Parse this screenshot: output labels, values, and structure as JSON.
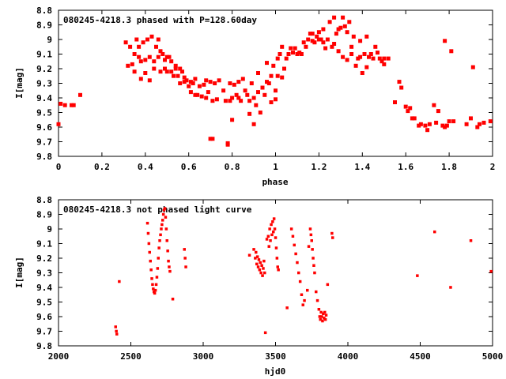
{
  "chart_data": [
    {
      "type": "scatter",
      "title": "080245-4218.3 phased with P=128.60day",
      "xlabel": "phase",
      "ylabel": "I[mag]",
      "xlim": [
        0,
        2
      ],
      "ylim": [
        9.8,
        8.8
      ],
      "y_inverted": true,
      "grid": false,
      "xticks": [
        "0",
        "0.2",
        "0.4",
        "0.6",
        "0.8",
        "1",
        "1.2",
        "1.4",
        "1.6",
        "1.8",
        "2"
      ],
      "yticks": [
        "8.8",
        "8.9",
        "9",
        "9.1",
        "9.2",
        "9.3",
        "9.4",
        "9.5",
        "9.6",
        "9.7",
        "9.8"
      ],
      "marker_color": "#ff0000",
      "points": [
        [
          0.0,
          9.58
        ],
        [
          0.01,
          9.44
        ],
        [
          0.03,
          9.45
        ],
        [
          0.06,
          9.45
        ],
        [
          0.07,
          9.45
        ],
        [
          0.1,
          9.38
        ],
        [
          0.31,
          9.02
        ],
        [
          0.32,
          9.18
        ],
        [
          0.33,
          9.05
        ],
        [
          0.34,
          9.17
        ],
        [
          0.35,
          9.1
        ],
        [
          0.35,
          9.22
        ],
        [
          0.36,
          9.0
        ],
        [
          0.37,
          9.12
        ],
        [
          0.37,
          9.05
        ],
        [
          0.38,
          9.15
        ],
        [
          0.38,
          9.27
        ],
        [
          0.39,
          9.02
        ],
        [
          0.4,
          9.14
        ],
        [
          0.4,
          9.23
        ],
        [
          0.41,
          9.0
        ],
        [
          0.42,
          9.12
        ],
        [
          0.42,
          9.28
        ],
        [
          0.43,
          8.98
        ],
        [
          0.44,
          9.15
        ],
        [
          0.44,
          9.2
        ],
        [
          0.45,
          9.05
        ],
        [
          0.46,
          9.12
        ],
        [
          0.46,
          9.0
        ],
        [
          0.47,
          9.08
        ],
        [
          0.47,
          9.22
        ],
        [
          0.48,
          9.1
        ],
        [
          0.49,
          9.14
        ],
        [
          0.49,
          9.2
        ],
        [
          0.5,
          9.12
        ],
        [
          0.5,
          9.22
        ],
        [
          0.51,
          9.12
        ],
        [
          0.52,
          9.15
        ],
        [
          0.52,
          9.22
        ],
        [
          0.53,
          9.25
        ],
        [
          0.54,
          9.2
        ],
        [
          0.54,
          9.18
        ],
        [
          0.55,
          9.25
        ],
        [
          0.56,
          9.2
        ],
        [
          0.56,
          9.3
        ],
        [
          0.57,
          9.22
        ],
        [
          0.58,
          9.26
        ],
        [
          0.58,
          9.29
        ],
        [
          0.59,
          9.28
        ],
        [
          0.6,
          9.32
        ],
        [
          0.61,
          9.29
        ],
        [
          0.61,
          9.36
        ],
        [
          0.62,
          9.3
        ],
        [
          0.63,
          9.27
        ],
        [
          0.63,
          9.38
        ],
        [
          0.64,
          9.38
        ],
        [
          0.65,
          9.32
        ],
        [
          0.66,
          9.39
        ],
        [
          0.67,
          9.31
        ],
        [
          0.68,
          9.28
        ],
        [
          0.68,
          9.4
        ],
        [
          0.69,
          9.36
        ],
        [
          0.7,
          9.68
        ],
        [
          0.7,
          9.29
        ],
        [
          0.71,
          9.42
        ],
        [
          0.71,
          9.68
        ],
        [
          0.72,
          9.3
        ],
        [
          0.73,
          9.41
        ],
        [
          0.74,
          9.28
        ],
        [
          0.76,
          9.35
        ],
        [
          0.77,
          9.42
        ],
        [
          0.78,
          9.71
        ],
        [
          0.78,
          9.72
        ],
        [
          0.79,
          9.3
        ],
        [
          0.79,
          9.42
        ],
        [
          0.8,
          9.4
        ],
        [
          0.8,
          9.55
        ],
        [
          0.81,
          9.31
        ],
        [
          0.82,
          9.38
        ],
        [
          0.83,
          9.4
        ],
        [
          0.83,
          9.29
        ],
        [
          0.84,
          9.42
        ],
        [
          0.85,
          9.27
        ],
        [
          0.86,
          9.35
        ],
        [
          0.87,
          9.38
        ],
        [
          0.88,
          9.42
        ],
        [
          0.88,
          9.51
        ],
        [
          0.89,
          9.3
        ],
        [
          0.9,
          9.58
        ],
        [
          0.9,
          9.4
        ],
        [
          0.91,
          9.45
        ],
        [
          0.92,
          9.23
        ],
        [
          0.92,
          9.36
        ],
        [
          0.93,
          9.5
        ],
        [
          0.94,
          9.33
        ],
        [
          0.95,
          9.38
        ],
        [
          0.96,
          9.16
        ],
        [
          0.96,
          9.29
        ],
        [
          0.97,
          9.3
        ],
        [
          0.98,
          9.25
        ],
        [
          0.98,
          9.43
        ],
        [
          0.99,
          9.18
        ],
        [
          1.0,
          9.35
        ],
        [
          1.0,
          9.41
        ],
        [
          1.01,
          9.13
        ],
        [
          1.01,
          9.25
        ],
        [
          1.02,
          9.1
        ],
        [
          1.03,
          9.05
        ],
        [
          1.03,
          9.26
        ],
        [
          1.04,
          9.2
        ],
        [
          1.05,
          9.13
        ],
        [
          1.06,
          9.1
        ],
        [
          1.07,
          9.06
        ],
        [
          1.08,
          9.09
        ],
        [
          1.09,
          9.06
        ],
        [
          1.1,
          9.1
        ],
        [
          1.11,
          9.09
        ],
        [
          1.12,
          9.1
        ],
        [
          1.13,
          9.02
        ],
        [
          1.14,
          9.05
        ],
        [
          1.15,
          9.0
        ],
        [
          1.16,
          8.96
        ],
        [
          1.17,
          9.01
        ],
        [
          1.17,
          8.96
        ],
        [
          1.18,
          9.02
        ],
        [
          1.19,
          8.98
        ],
        [
          1.2,
          9.0
        ],
        [
          1.2,
          8.95
        ],
        [
          1.21,
          9.0
        ],
        [
          1.22,
          9.02
        ],
        [
          1.22,
          8.93
        ],
        [
          1.23,
          9.06
        ],
        [
          1.24,
          9.0
        ],
        [
          1.25,
          8.88
        ],
        [
          1.26,
          9.05
        ],
        [
          1.27,
          9.03
        ],
        [
          1.27,
          8.85
        ],
        [
          1.28,
          8.96
        ],
        [
          1.29,
          9.08
        ],
        [
          1.29,
          8.93
        ],
        [
          1.3,
          8.92
        ],
        [
          1.31,
          9.12
        ],
        [
          1.31,
          8.85
        ],
        [
          1.32,
          8.91
        ],
        [
          1.33,
          9.14
        ],
        [
          1.33,
          8.95
        ],
        [
          1.34,
          8.88
        ],
        [
          1.35,
          9.05
        ],
        [
          1.35,
          9.1
        ],
        [
          1.36,
          8.98
        ],
        [
          1.37,
          9.18
        ],
        [
          1.38,
          9.13
        ],
        [
          1.39,
          9.01
        ],
        [
          1.39,
          9.12
        ],
        [
          1.4,
          9.23
        ],
        [
          1.41,
          9.1
        ],
        [
          1.42,
          9.19
        ],
        [
          1.42,
          8.98
        ],
        [
          1.43,
          9.12
        ],
        [
          1.44,
          9.1
        ],
        [
          1.45,
          9.13
        ],
        [
          1.46,
          9.05
        ],
        [
          1.47,
          9.09
        ],
        [
          1.48,
          9.13
        ],
        [
          1.49,
          9.15
        ],
        [
          1.5,
          9.13
        ],
        [
          1.5,
          9.17
        ],
        [
          1.52,
          9.13
        ],
        [
          1.55,
          9.43
        ],
        [
          1.57,
          9.29
        ],
        [
          1.58,
          9.33
        ],
        [
          1.6,
          9.46
        ],
        [
          1.61,
          9.49
        ],
        [
          1.62,
          9.47
        ],
        [
          1.63,
          9.54
        ],
        [
          1.64,
          9.54
        ],
        [
          1.66,
          9.59
        ],
        [
          1.67,
          9.58
        ],
        [
          1.69,
          9.59
        ],
        [
          1.7,
          9.62
        ],
        [
          1.71,
          9.58
        ],
        [
          1.73,
          9.45
        ],
        [
          1.74,
          9.57
        ],
        [
          1.75,
          9.49
        ],
        [
          1.77,
          9.59
        ],
        [
          1.78,
          9.01
        ],
        [
          1.78,
          9.6
        ],
        [
          1.79,
          9.59
        ],
        [
          1.8,
          9.56
        ],
        [
          1.81,
          9.08
        ],
        [
          1.82,
          9.56
        ],
        [
          1.88,
          9.58
        ],
        [
          1.9,
          9.54
        ],
        [
          1.91,
          9.19
        ],
        [
          1.93,
          9.6
        ],
        [
          1.94,
          9.58
        ],
        [
          1.96,
          9.57
        ],
        [
          1.99,
          9.56
        ]
      ]
    },
    {
      "type": "scatter",
      "title": "080245-4218.3 not phased light curve",
      "xlabel": "hjd0",
      "ylabel": "I[mag]",
      "xlim": [
        2000,
        5000
      ],
      "ylim": [
        9.8,
        8.8
      ],
      "y_inverted": true,
      "grid": false,
      "xticks": [
        "2000",
        "2500",
        "3000",
        "3500",
        "4000",
        "4500",
        "5000"
      ],
      "yticks": [
        "8.8",
        "8.9",
        "9",
        "9.1",
        "9.2",
        "9.3",
        "9.4",
        "9.5",
        "9.6",
        "9.7",
        "9.8"
      ],
      "marker_color": "#ff0000",
      "points": [
        [
          2395,
          9.67
        ],
        [
          2400,
          9.7
        ],
        [
          2403,
          9.72
        ],
        [
          2420,
          9.36
        ],
        [
          2615,
          8.96
        ],
        [
          2620,
          9.03
        ],
        [
          2625,
          9.1
        ],
        [
          2630,
          9.16
        ],
        [
          2635,
          9.22
        ],
        [
          2640,
          9.28
        ],
        [
          2645,
          9.34
        ],
        [
          2650,
          9.38
        ],
        [
          2655,
          9.41
        ],
        [
          2660,
          9.43
        ],
        [
          2665,
          9.44
        ],
        [
          2670,
          9.42
        ],
        [
          2675,
          9.38
        ],
        [
          2680,
          9.33
        ],
        [
          2685,
          9.27
        ],
        [
          2690,
          9.2
        ],
        [
          2695,
          9.13
        ],
        [
          2700,
          9.08
        ],
        [
          2705,
          9.04
        ],
        [
          2710,
          9.0
        ],
        [
          2715,
          8.97
        ],
        [
          2720,
          8.94
        ],
        [
          2725,
          8.9
        ],
        [
          2730,
          8.87
        ],
        [
          2735,
          8.86
        ],
        [
          2740,
          8.92
        ],
        [
          2745,
          9.0
        ],
        [
          2750,
          9.08
        ],
        [
          2755,
          9.15
        ],
        [
          2760,
          9.22
        ],
        [
          2765,
          9.26
        ],
        [
          2770,
          9.29
        ],
        [
          2790,
          9.48
        ],
        [
          2870,
          9.14
        ],
        [
          2875,
          9.2
        ],
        [
          2880,
          9.26
        ],
        [
          3320,
          9.18
        ],
        [
          3350,
          9.14
        ],
        [
          3360,
          9.2
        ],
        [
          3365,
          9.16
        ],
        [
          3370,
          9.24
        ],
        [
          3375,
          9.19
        ],
        [
          3380,
          9.26
        ],
        [
          3385,
          9.21
        ],
        [
          3390,
          9.28
        ],
        [
          3395,
          9.23
        ],
        [
          3400,
          9.3
        ],
        [
          3405,
          9.25
        ],
        [
          3410,
          9.32
        ],
        [
          3415,
          9.27
        ],
        [
          3420,
          9.22
        ],
        [
          3425,
          9.3
        ],
        [
          3430,
          9.71
        ],
        [
          3440,
          9.07
        ],
        [
          3450,
          9.05
        ],
        [
          3455,
          9.12
        ],
        [
          3460,
          9.0
        ],
        [
          3465,
          9.08
        ],
        [
          3470,
          8.97
        ],
        [
          3475,
          9.04
        ],
        [
          3480,
          8.95
        ],
        [
          3485,
          9.02
        ],
        [
          3490,
          8.93
        ],
        [
          3495,
          9.0
        ],
        [
          3500,
          9.06
        ],
        [
          3505,
          9.13
        ],
        [
          3510,
          9.2
        ],
        [
          3515,
          9.26
        ],
        [
          3520,
          9.28
        ],
        [
          3580,
          9.54
        ],
        [
          3610,
          9.0
        ],
        [
          3620,
          9.05
        ],
        [
          3630,
          9.11
        ],
        [
          3640,
          9.17
        ],
        [
          3650,
          9.23
        ],
        [
          3660,
          9.3
        ],
        [
          3670,
          9.36
        ],
        [
          3680,
          9.45
        ],
        [
          3690,
          9.52
        ],
        [
          3700,
          9.49
        ],
        [
          3720,
          9.42
        ],
        [
          3730,
          9.12
        ],
        [
          3740,
          9.0
        ],
        [
          3745,
          9.04
        ],
        [
          3750,
          9.08
        ],
        [
          3755,
          9.14
        ],
        [
          3760,
          9.2
        ],
        [
          3765,
          9.25
        ],
        [
          3770,
          9.3
        ],
        [
          3780,
          9.43
        ],
        [
          3790,
          9.49
        ],
        [
          3800,
          9.55
        ],
        [
          3805,
          9.6
        ],
        [
          3810,
          9.62
        ],
        [
          3815,
          9.57
        ],
        [
          3820,
          9.6
        ],
        [
          3825,
          9.63
        ],
        [
          3830,
          9.58
        ],
        [
          3835,
          9.61
        ],
        [
          3840,
          9.57
        ],
        [
          3845,
          9.62
        ],
        [
          3850,
          9.59
        ],
        [
          3860,
          9.38
        ],
        [
          3890,
          9.03
        ],
        [
          3895,
          9.06
        ],
        [
          4480,
          9.32
        ],
        [
          4600,
          9.02
        ],
        [
          4710,
          9.4
        ],
        [
          4850,
          9.08
        ],
        [
          4990,
          9.29
        ]
      ]
    }
  ]
}
